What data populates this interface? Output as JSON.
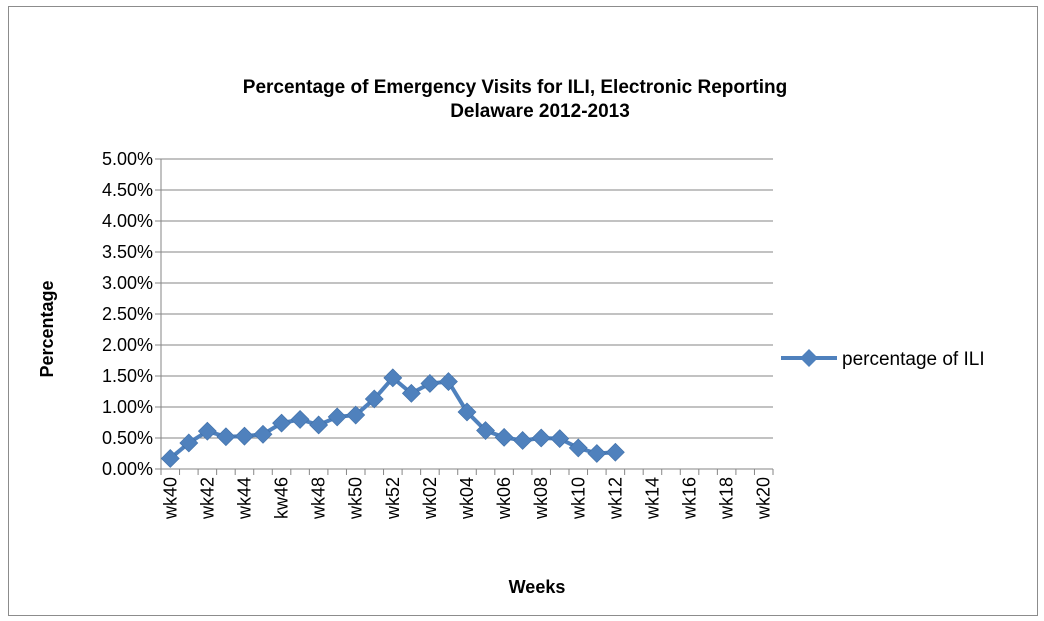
{
  "chart_data": {
    "type": "line",
    "title": "Percentage of Emergency Visits for ILI, Electronic Reporting",
    "subtitle": "Delaware 2012-2013",
    "xlabel": "Weeks",
    "ylabel": "Percentage",
    "ylim": [
      0,
      0.05
    ],
    "y_ticks": [
      "0.00%",
      "0.50%",
      "1.00%",
      "1.50%",
      "2.00%",
      "2.50%",
      "3.00%",
      "3.50%",
      "4.00%",
      "4.50%",
      "5.00%"
    ],
    "x_tick_labels": [
      "wk40",
      "wk42",
      "wk44",
      "kw46",
      "wk48",
      "wk50",
      "wk52",
      "wk02",
      "wk04",
      "wk06",
      "wk08",
      "wk10",
      "wk12",
      "wk14",
      "wk16",
      "wk18",
      "wk20"
    ],
    "category_count": 33,
    "grid": true,
    "legend_position": "right",
    "series": [
      {
        "name": "percentage of ILI",
        "color": "#4f81bd",
        "marker": "diamond",
        "values": [
          0.0017,
          0.0042,
          0.0061,
          0.0052,
          0.0053,
          0.0056,
          0.0074,
          0.008,
          0.0071,
          0.0084,
          0.0087,
          0.0113,
          0.0147,
          0.0122,
          0.0138,
          0.0141,
          0.0092,
          0.0062,
          0.0051,
          0.0046,
          0.005,
          0.0049,
          0.0034,
          0.0025,
          0.0027
        ]
      }
    ]
  }
}
